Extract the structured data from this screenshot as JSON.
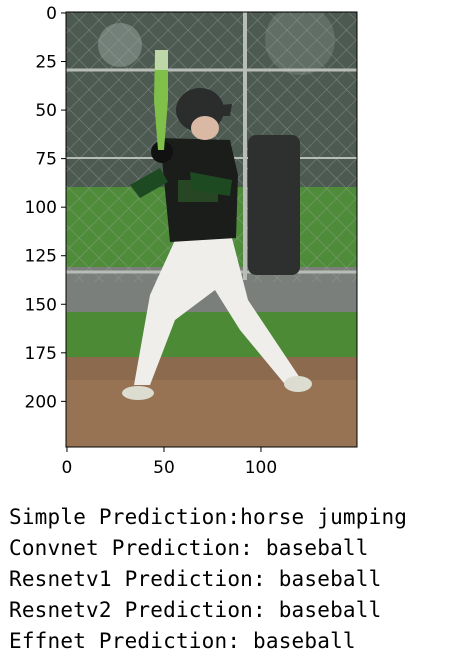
{
  "figure": {
    "image_description_icon": "baseball-batter-photo",
    "axes": {
      "y_ticks": [
        "0",
        "25",
        "50",
        "75",
        "100",
        "125",
        "150",
        "175",
        "200"
      ],
      "y_values": [
        0,
        25,
        50,
        75,
        100,
        125,
        150,
        175,
        200
      ],
      "x_ticks": [
        "0",
        "50",
        "100"
      ],
      "x_values": [
        0,
        50,
        100
      ],
      "xlim": [
        -0.5,
        149.5
      ],
      "ylim": [
        223.5,
        -0.5
      ]
    }
  },
  "predictions": [
    {
      "label": "Simple Prediction:horse jumping"
    },
    {
      "label": "Convnet Prediction: baseball"
    },
    {
      "label": "Resnetv1 Prediction: baseball"
    },
    {
      "label": "Resnetv2 Prediction: baseball"
    },
    {
      "label": "Effnet Prediction: baseball"
    }
  ]
}
